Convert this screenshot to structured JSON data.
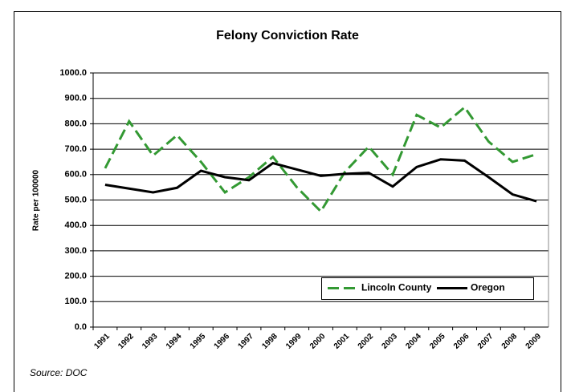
{
  "chart_data": {
    "type": "line",
    "title": "Felony Conviction Rate",
    "ylabel": "Rate per 100000",
    "source": "Source: DOC",
    "categories": [
      "1991",
      "1992",
      "1993",
      "1994",
      "1995",
      "1996",
      "1997",
      "1998",
      "1999",
      "2000",
      "2001",
      "2002",
      "2003",
      "2004",
      "2005",
      "2006",
      "2007",
      "2008",
      "2009"
    ],
    "series": [
      {
        "name": "Lincoln County",
        "color": "#339933",
        "dashed": true,
        "values": [
          625,
          810,
          675,
          755,
          650,
          530,
          590,
          670,
          550,
          455,
          610,
          710,
          600,
          835,
          785,
          865,
          730,
          650,
          680
        ]
      },
      {
        "name": "Oregon",
        "color": "#000000",
        "dashed": false,
        "values": [
          560,
          545,
          530,
          548,
          615,
          590,
          578,
          645,
          620,
          595,
          603,
          607,
          553,
          630,
          660,
          655,
          590,
          522,
          495
        ]
      }
    ],
    "ylim": [
      0,
      1000
    ],
    "yticks": [
      {
        "value": 0,
        "label": "0.0"
      },
      {
        "value": 100,
        "label": "100.0"
      },
      {
        "value": 200,
        "label": "200.0"
      },
      {
        "value": 300,
        "label": "300.0"
      },
      {
        "value": 400,
        "label": "400.0"
      },
      {
        "value": 500,
        "label": "500.0"
      },
      {
        "value": 600,
        "label": "600.0"
      },
      {
        "value": 700,
        "label": "700.0"
      },
      {
        "value": 800,
        "label": "800.0"
      },
      {
        "value": 900,
        "label": "900.0"
      },
      {
        "value": 1000,
        "label": "1000.0"
      }
    ],
    "grid": true,
    "legend": "lower right"
  }
}
